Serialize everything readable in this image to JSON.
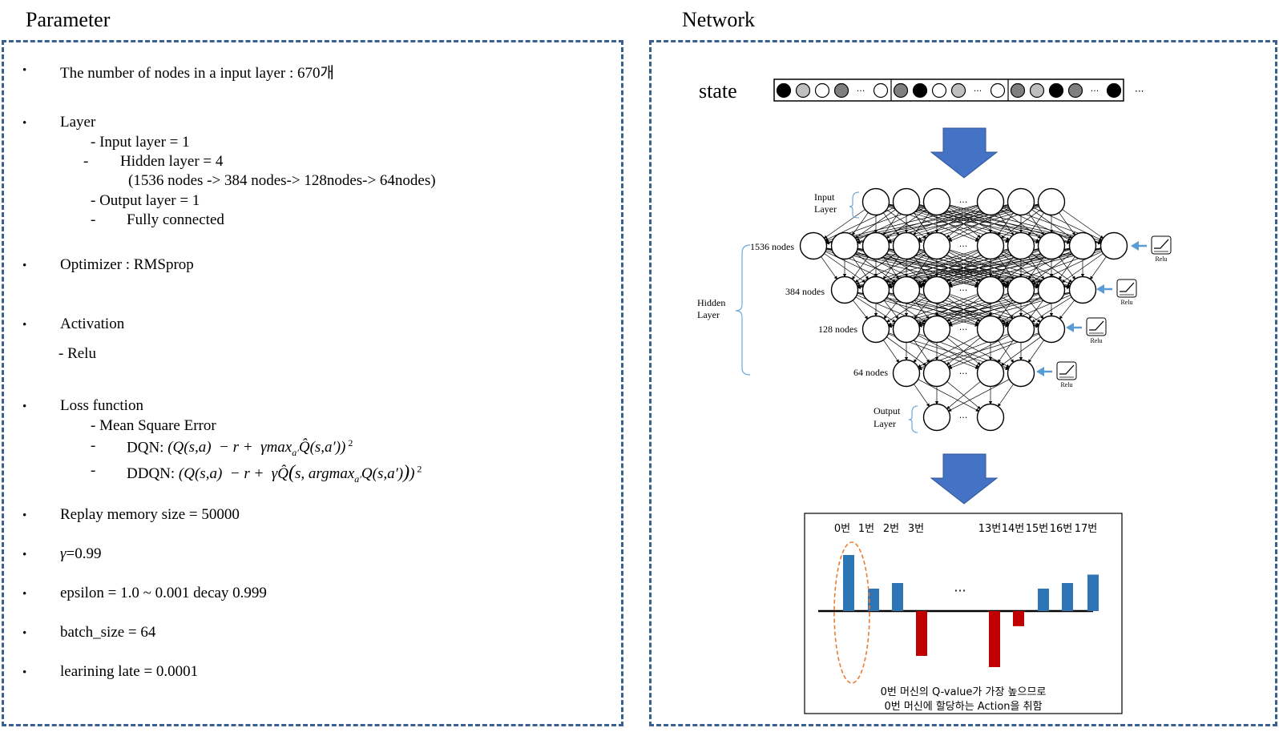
{
  "parameter": {
    "title": "Parameter",
    "bullet": "•",
    "input_nodes": "The number of nodes in a input layer : 670개",
    "layer": "Layer",
    "input_layer": "- Input layer = 1",
    "hidden_dash": "-",
    "hidden_layer": "Hidden layer = 4",
    "hidden_nodes": "(1536 nodes -> 384 nodes-> 128nodes-> 64nodes)",
    "output_layer": "- Output layer = 1",
    "fc_dash": "-",
    "fully_connected": "Fully connected",
    "optimizer": "Optimizer : RMSprop",
    "activation": "Activation",
    "relu": "- Relu",
    "loss": "Loss function",
    "mse": "- Mean Square Error",
    "dqn_dash": "-",
    "dqn_label": "DQN:",
    "ddqn_dash": "-",
    "ddqn_label": "DDQN:",
    "replay": "Replay memory size = 50000",
    "gamma_sym": "γ",
    "gamma_val": "=0.99",
    "epsilon": "epsilon = 1.0 ~ 0.001 decay 0.999",
    "batch": "batch_size = 64",
    "lr": "learining late = 0.0001"
  },
  "network": {
    "title": "Network",
    "state_label": "state",
    "ellipsis": "···",
    "input_layer_label": [
      "Input",
      "Layer"
    ],
    "hidden_layer_label": [
      "Hidden",
      "Layer"
    ],
    "output_layer_label": [
      "Output",
      "Layer"
    ],
    "layer_labels": [
      "1536 nodes",
      "384 nodes",
      "128 nodes",
      "64 nodes"
    ],
    "relu_label": "Relu",
    "state_cells": [
      "black",
      "lightgray",
      "white",
      "gray",
      "dots",
      "white",
      "gray",
      "black",
      "white",
      "lightgray",
      "dots",
      "white",
      "gray",
      "lightgray",
      "black",
      "gray",
      "dots",
      "black"
    ],
    "colors": {
      "arrow": "#4472c4",
      "positive": "#2e75b6",
      "negative": "#c00000",
      "highlight": "#ed7d31",
      "border": "#3a5f91"
    }
  },
  "chart_data": {
    "type": "bar",
    "categories": [
      "0번",
      "1번",
      "2번",
      "3번",
      "13번",
      "14번",
      "15번",
      "16번",
      "17번"
    ],
    "values": [
      1.0,
      0.4,
      0.5,
      -0.8,
      -1.0,
      -0.27,
      0.4,
      0.5,
      0.65
    ],
    "ellipsis": "···",
    "caption_line1": "0번 머신의 Q-value가 가장 높으므로",
    "caption_line2": "0번 머신에 할당하는 Action을 취함",
    "highlight_category": "0번"
  }
}
